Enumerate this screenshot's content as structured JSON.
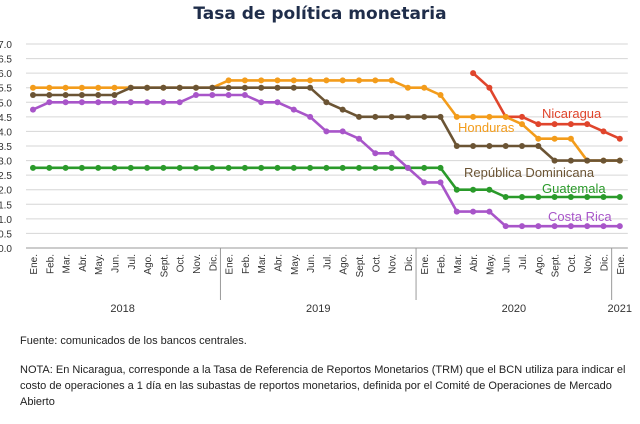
{
  "chart_data": {
    "type": "line",
    "title": "Tasa de política monetaria",
    "months": [
      "Ene.",
      "Feb.",
      "Mar.",
      "Abr.",
      "May.",
      "Jun.",
      "Jul.",
      "Ago.",
      "Sept.",
      "Oct.",
      "Nov.",
      "Dic.",
      "Ene.",
      "Feb.",
      "Mar.",
      "Abr.",
      "May.",
      "Jun.",
      "Jul.",
      "Ago.",
      "Sept.",
      "Oct.",
      "Nov.",
      "Dic.",
      "Ene.",
      "Feb.",
      "Mar.",
      "Abr.",
      "May.",
      "Jun.",
      "Jul.",
      "Ago.",
      "Sept.",
      "Oct.",
      "Nov.",
      "Dic.",
      "Ene."
    ],
    "years": [
      {
        "label": "2018",
        "start": 0,
        "end": 11
      },
      {
        "label": "2019",
        "start": 12,
        "end": 23
      },
      {
        "label": "2020",
        "start": 24,
        "end": 35
      },
      {
        "label": "2021",
        "start": 36,
        "end": 36
      }
    ],
    "yticks": [
      "0.0",
      "0.5",
      "1.0",
      "1.5",
      "2.0",
      "2.5",
      "3.0",
      "3.5",
      "4.0",
      "4.5",
      "5.0",
      "5.5",
      "6.0",
      "6.5",
      "7.0"
    ],
    "ylim": [
      0,
      7
    ],
    "grid": true,
    "series": [
      {
        "name": "Nicaragua",
        "color": "#e0452c",
        "start": 27,
        "values": [
          6.0,
          5.5,
          4.5,
          4.5,
          4.25,
          4.25,
          4.25,
          4.25,
          4.0,
          3.75
        ]
      },
      {
        "name": "Honduras",
        "color": "#f39c1b",
        "start": 0,
        "values": [
          5.5,
          5.5,
          5.5,
          5.5,
          5.5,
          5.5,
          5.5,
          5.5,
          5.5,
          5.5,
          5.5,
          5.5,
          5.75,
          5.75,
          5.75,
          5.75,
          5.75,
          5.75,
          5.75,
          5.75,
          5.75,
          5.75,
          5.75,
          5.5,
          5.5,
          5.25,
          4.5,
          4.5,
          4.5,
          4.5,
          4.25,
          3.75,
          3.75,
          3.75,
          3.0,
          3.0,
          3.0
        ]
      },
      {
        "name": "República Dominicana",
        "color": "#6b5434",
        "start": 0,
        "values": [
          5.25,
          5.25,
          5.25,
          5.25,
          5.25,
          5.25,
          5.5,
          5.5,
          5.5,
          5.5,
          5.5,
          5.5,
          5.5,
          5.5,
          5.5,
          5.5,
          5.5,
          5.5,
          5.0,
          4.75,
          4.5,
          4.5,
          4.5,
          4.5,
          4.5,
          4.5,
          3.5,
          3.5,
          3.5,
          3.5,
          3.5,
          3.5,
          3.0,
          3.0,
          3.0,
          3.0,
          3.0
        ]
      },
      {
        "name": "Guatemala",
        "color": "#2a9a2a",
        "start": 0,
        "values": [
          2.75,
          2.75,
          2.75,
          2.75,
          2.75,
          2.75,
          2.75,
          2.75,
          2.75,
          2.75,
          2.75,
          2.75,
          2.75,
          2.75,
          2.75,
          2.75,
          2.75,
          2.75,
          2.75,
          2.75,
          2.75,
          2.75,
          2.75,
          2.75,
          2.75,
          2.75,
          2.0,
          2.0,
          2.0,
          1.75,
          1.75,
          1.75,
          1.75,
          1.75,
          1.75,
          1.75,
          1.75
        ]
      },
      {
        "name": "Costa Rica",
        "color": "#a855c9",
        "start": 0,
        "values": [
          4.75,
          5.0,
          5.0,
          5.0,
          5.0,
          5.0,
          5.0,
          5.0,
          5.0,
          5.0,
          5.25,
          5.25,
          5.25,
          5.25,
          5.0,
          5.0,
          4.75,
          4.5,
          4.0,
          4.0,
          3.75,
          3.25,
          3.25,
          2.75,
          2.25,
          2.25,
          1.25,
          1.25,
          1.25,
          0.75,
          0.75,
          0.75,
          0.75,
          0.75,
          0.75,
          0.75,
          0.75
        ]
      }
    ]
  },
  "source": "Fuente: comunicados de los bancos centrales.",
  "note": "NOTA: En Nicaragua, corresponde a la Tasa de Referencia de Reportos Monetarios (TRM) que el BCN utiliza para indicar el costo de operaciones a 1 día en las subastas de reportos monetarios, definida por el Comité de Operaciones de Mercado Abierto"
}
